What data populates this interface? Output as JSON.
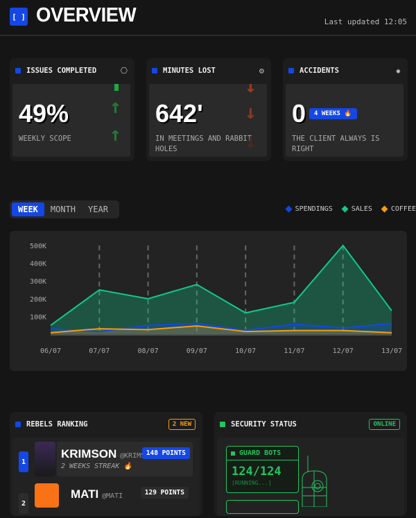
{
  "header": {
    "logo": "[ ]",
    "title": "OVERVIEW",
    "last_updated": "Last updated 12:05"
  },
  "kpis": [
    {
      "title": "ISSUES COMPLETED",
      "icon": "settings-icon",
      "value": "49%",
      "subtitle": "WEEKLY SCOPE",
      "trend": "up",
      "trend_color": "#1f7a35"
    },
    {
      "title": "MINUTES LOST",
      "icon": "chip-icon",
      "value": "642'",
      "subtitle": "IN MEETINGS AND RABBIT HOLES",
      "trend": "down",
      "trend_color": "#9a3a1e"
    },
    {
      "title": "ACCIDENTS",
      "icon": "virus-icon",
      "value": "0",
      "badge": "4 WEEKS 🔥",
      "subtitle": "THE CLIENT ALWAYS IS RIGHT"
    }
  ],
  "tabs": [
    {
      "label": "WEEK",
      "active": true
    },
    {
      "label": "MONTH",
      "active": false
    },
    {
      "label": "YEAR",
      "active": false
    }
  ],
  "legend": [
    {
      "label": "SPENDINGS",
      "color": "#1447e6"
    },
    {
      "label": "SALES",
      "color": "#10c98a"
    },
    {
      "label": "COFFEE",
      "color": "#f59e0b"
    }
  ],
  "chart_data": {
    "type": "area",
    "categories": [
      "06/07",
      "07/07",
      "08/07",
      "09/07",
      "10/07",
      "11/07",
      "12/07",
      "13/07"
    ],
    "yticks": [
      "100K",
      "200K",
      "300K",
      "400K",
      "500K"
    ],
    "ylim": [
      0,
      500000
    ],
    "grid": "vertical dashed",
    "legend": "top-right",
    "series": [
      {
        "name": "SPENDINGS",
        "color": "#1447e6",
        "values": [
          31000,
          15000,
          50000,
          60000,
          22000,
          56000,
          35000,
          61000
        ]
      },
      {
        "name": "SALES",
        "color": "#10c98a",
        "values": [
          50000,
          250000,
          200000,
          280000,
          120000,
          180000,
          500000,
          132000
        ]
      },
      {
        "name": "COFFEE",
        "color": "#f59e0b",
        "values": [
          9000,
          31000,
          26000,
          47000,
          15000,
          21000,
          21000,
          9000
        ]
      }
    ]
  },
  "ranking": {
    "title": "REBELS RANKING",
    "badge": "2 NEW",
    "items": [
      {
        "rank": "1",
        "name": "KRIMSON",
        "handle": "@KRIMSON",
        "streak": "2 WEEKS STREAK 🔥",
        "points": "148 POINTS"
      },
      {
        "rank": "2",
        "name": "MATI",
        "handle": "@MATI",
        "points": "129 POINTS"
      }
    ]
  },
  "security": {
    "title": "SECURITY STATUS",
    "badge": "ONLINE",
    "guard": {
      "label": "GUARD BOTS",
      "value": "124/124",
      "status": "[RUNNING...]"
    }
  }
}
